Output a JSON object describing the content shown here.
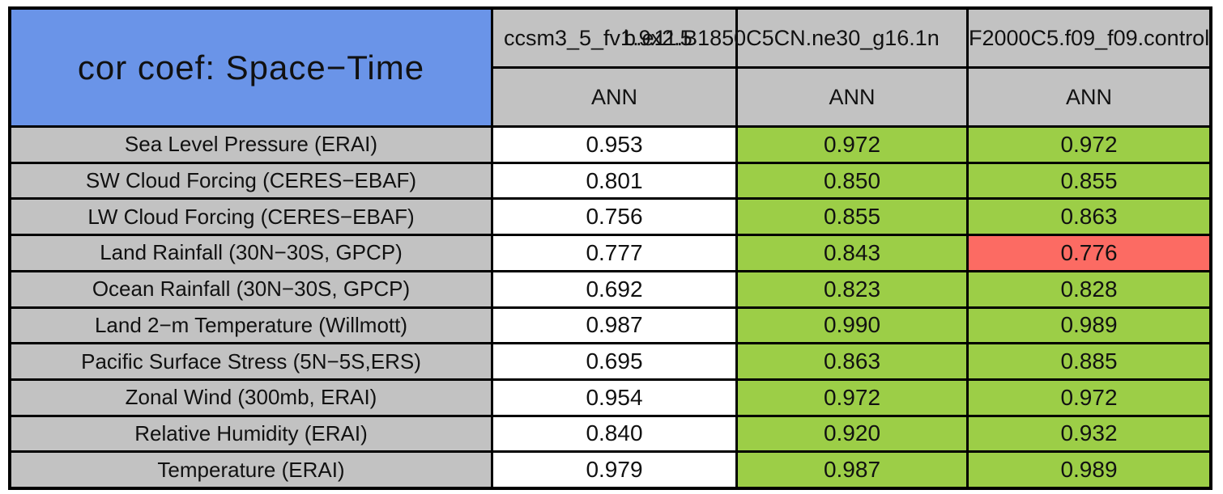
{
  "chart_data": {
    "type": "table",
    "title": "cor coef: Space−Time",
    "case_names": [
      "ccsm3_5_fv1.9x2.5",
      "b.e11.B1850C5CN.ne30_g16.1n",
      "F2000C5.f09_f09.control"
    ],
    "season_row": [
      "ANN",
      "ANN",
      "ANN"
    ],
    "rows": [
      {
        "label": "Sea Level Pressure (ERAI)",
        "values": [
          "0.953",
          "0.972",
          "0.972"
        ],
        "statuses": [
          "plain",
          "good",
          "good"
        ]
      },
      {
        "label": "SW Cloud Forcing (CERES−EBAF)",
        "values": [
          "0.801",
          "0.850",
          "0.855"
        ],
        "statuses": [
          "plain",
          "good",
          "good"
        ]
      },
      {
        "label": "LW Cloud Forcing (CERES−EBAF)",
        "values": [
          "0.756",
          "0.855",
          "0.863"
        ],
        "statuses": [
          "plain",
          "good",
          "good"
        ]
      },
      {
        "label": "Land Rainfall (30N−30S, GPCP)",
        "values": [
          "0.777",
          "0.843",
          "0.776"
        ],
        "statuses": [
          "plain",
          "good",
          "bad"
        ]
      },
      {
        "label": "Ocean Rainfall (30N−30S, GPCP)",
        "values": [
          "0.692",
          "0.823",
          "0.828"
        ],
        "statuses": [
          "plain",
          "good",
          "good"
        ]
      },
      {
        "label": "Land 2−m Temperature (Willmott)",
        "values": [
          "0.987",
          "0.990",
          "0.989"
        ],
        "statuses": [
          "plain",
          "good",
          "good"
        ]
      },
      {
        "label": "Pacific Surface Stress (5N−5S,ERS)",
        "values": [
          "0.695",
          "0.863",
          "0.885"
        ],
        "statuses": [
          "plain",
          "good",
          "good"
        ]
      },
      {
        "label": "Zonal Wind (300mb, ERAI)",
        "values": [
          "0.954",
          "0.972",
          "0.972"
        ],
        "statuses": [
          "plain",
          "good",
          "good"
        ]
      },
      {
        "label": "Relative Humidity (ERAI)",
        "values": [
          "0.840",
          "0.920",
          "0.932"
        ],
        "statuses": [
          "plain",
          "good",
          "good"
        ]
      },
      {
        "label": "Temperature (ERAI)",
        "values": [
          "0.979",
          "0.987",
          "0.989"
        ],
        "statuses": [
          "plain",
          "good",
          "good"
        ]
      }
    ]
  },
  "colors": {
    "blue": "#6a94e8",
    "gray": "#c2c2c2",
    "green": "#9cce47",
    "red": "#fc6b63",
    "border": "#000000",
    "page": "#ffffff",
    "text": "#111111"
  }
}
